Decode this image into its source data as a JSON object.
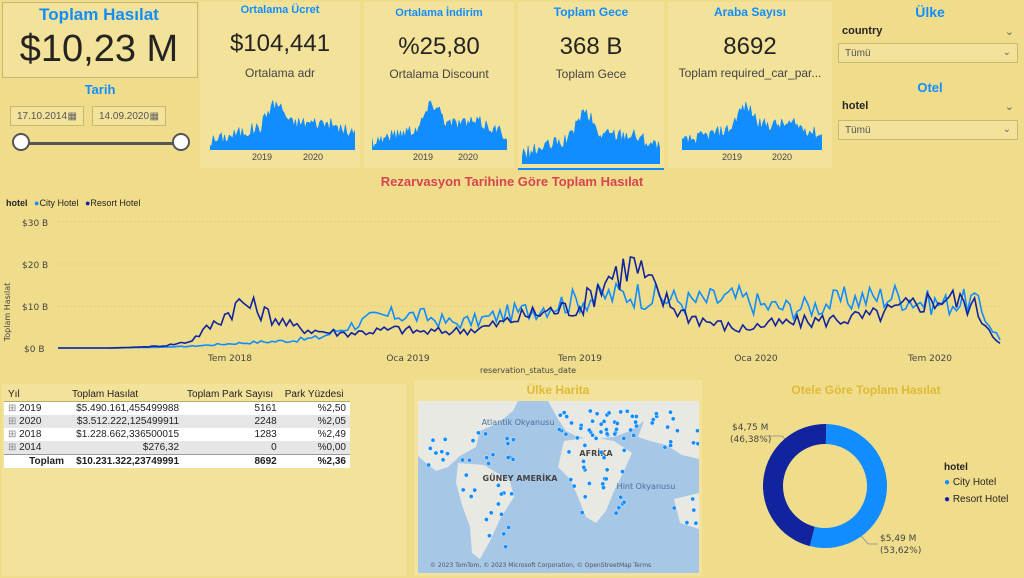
{
  "kpis": {
    "total": {
      "title": "Toplam Hasılat",
      "value": "$10,23 M"
    },
    "adr": {
      "title": "Ortalama Ücret",
      "value": "$104,441",
      "subtitle": "Ortalama adr"
    },
    "discount": {
      "title": "Ortalama İndirim",
      "value": "%25,80",
      "subtitle": "Ortalama Discount"
    },
    "nights": {
      "title": "Toplam Gece",
      "value": "368 B",
      "subtitle": "Toplam Gece"
    },
    "cars": {
      "title": "Araba Sayısı",
      "value": "8692",
      "subtitle": "Toplam required_car_par..."
    }
  },
  "sparkline_years": [
    "2019",
    "2020"
  ],
  "date_slicer": {
    "title": "Tarih",
    "start": "17.10.2014",
    "end": "14.09.2020"
  },
  "country_slicer": {
    "title": "Ülke",
    "field": "country",
    "value": "Tümü"
  },
  "hotel_slicer": {
    "title": "Otel",
    "field": "hotel",
    "value": "Tümü"
  },
  "main_chart_title": "Rezarvasyon Tarihine Göre Toplam Hasılat",
  "legend": {
    "label": "hotel",
    "items": [
      {
        "name": "City Hotel",
        "color": "#118dff"
      },
      {
        "name": "Resort Hotel",
        "color": "#12239e"
      }
    ]
  },
  "chart_data": {
    "type": "line",
    "title": "Rezarvasyon Tarihine Göre Toplam Hasılat",
    "xlabel": "reservation_status_date",
    "ylabel": "Toplam Hasılat",
    "y_ticks": [
      "$30 B",
      "$20 B",
      "$10 B",
      "$0 B"
    ],
    "x_ticks": [
      "Tem 2018",
      "Oca 2019",
      "Tem 2019",
      "Oca 2020",
      "Tem 2020"
    ],
    "ylim": [
      0,
      30000
    ],
    "x": [
      "2017-09",
      "2017-10",
      "2017-11",
      "2017-12",
      "2018-01",
      "2018-02",
      "2018-03",
      "2018-04",
      "2018-05",
      "2018-06",
      "2018-07",
      "2018-08",
      "2018-09",
      "2018-10",
      "2018-11",
      "2018-12",
      "2019-01",
      "2019-02",
      "2019-03",
      "2019-04",
      "2019-05",
      "2019-06",
      "2019-07",
      "2019-08",
      "2019-09",
      "2019-10",
      "2019-11",
      "2019-12",
      "2020-01",
      "2020-02",
      "2020-03",
      "2020-04",
      "2020-05",
      "2020-06",
      "2020-07",
      "2020-08",
      "2020-09"
    ],
    "series": [
      {
        "name": "City Hotel",
        "color": "#118dff",
        "values": [
          0,
          0,
          0,
          100,
          200,
          400,
          800,
          1200,
          1500,
          1800,
          2500,
          5000,
          7000,
          8000,
          7500,
          6000,
          6500,
          8000,
          9000,
          10500,
          11500,
          12500,
          13000,
          12000,
          11000,
          11500,
          12000,
          10000,
          9500,
          10000,
          11500,
          12000,
          12500,
          11000,
          10500,
          11500,
          2000
        ]
      },
      {
        "name": "Resort Hotel",
        "color": "#12239e",
        "values": [
          0,
          0,
          0,
          200,
          500,
          1500,
          6000,
          11000,
          8000,
          5000,
          4000,
          3500,
          4000,
          4500,
          3800,
          4000,
          4500,
          6000,
          8000,
          9000,
          10000,
          17000,
          20000,
          12000,
          8000,
          6000,
          4500,
          5500,
          6000,
          6500,
          7000,
          7500,
          9000,
          11000,
          12000,
          10000,
          1000
        ]
      }
    ]
  },
  "table": {
    "headers": [
      "Yıl",
      "Toplam Hasılat",
      "Toplam Park Sayısı",
      "Park Yüzdesi"
    ],
    "rows": [
      [
        "2019",
        "$5.490.161,455499988",
        "5161",
        "%2,50"
      ],
      [
        "2020",
        "$3.512.222,125499911",
        "2248",
        "%2,05"
      ],
      [
        "2018",
        "$1.228.662,336500015",
        "1283",
        "%2,49"
      ],
      [
        "2014",
        "$276,32",
        "0",
        "%0,00"
      ]
    ],
    "total": [
      "Toplam",
      "$10.231.322,23749991",
      "8692",
      "%2,36"
    ]
  },
  "map": {
    "title": "Ülke Harita",
    "labels": {
      "atlantic": "Atlantik Okyanusu",
      "africa": "AFRİKA",
      "south_america": "GÜNEY AMERİKA",
      "indian": "Hint Okyanusu"
    },
    "credit": "© 2023 TomTom, © 2023 Microsoft Corporation, © OpenStreetMap  Terms"
  },
  "donut": {
    "title": "Otele Göre Toplam Hasılat",
    "legend_title": "hotel",
    "slices": [
      {
        "name": "City Hotel",
        "value": "$5,49 M",
        "pct": "(53,62%)",
        "fraction": 0.5362,
        "color": "#118dff"
      },
      {
        "name": "Resort Hotel",
        "value": "$4,75 M",
        "pct": "(46,38%)",
        "fraction": 0.4638,
        "color": "#12239e"
      }
    ]
  }
}
